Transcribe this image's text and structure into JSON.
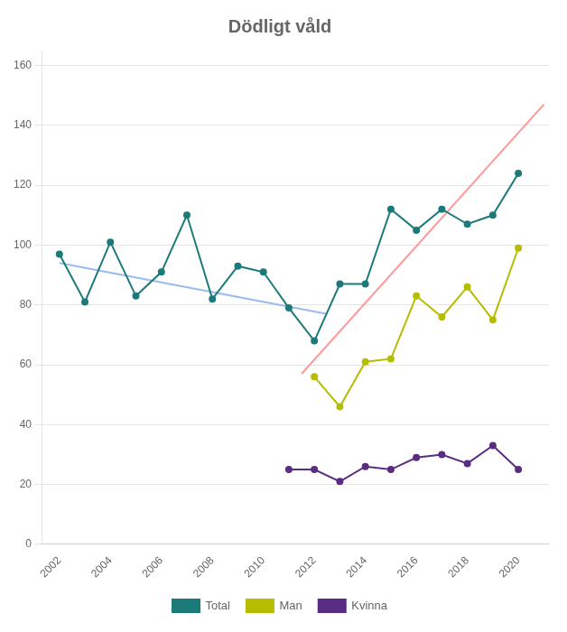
{
  "chart_data": {
    "type": "line",
    "title": "Dödligt våld",
    "series": [
      {
        "color": "#99bbee",
        "x": [
          2002.0,
          2012.5
        ],
        "values": [
          94.0,
          77.0
        ],
        "marker": "none"
      },
      {
        "color": "#ff9999",
        "x": [
          2011.5,
          2021.0
        ],
        "values": [
          57.0,
          147.0
        ],
        "marker": "none"
      },
      {
        "name": "Total",
        "color": "#1d7a7a",
        "marker": "circle",
        "x": [
          2002,
          2003,
          2004,
          2005,
          2006,
          2007,
          2008,
          2009,
          2010,
          2011,
          2012,
          2013,
          2014,
          2015,
          2016,
          2017,
          2018,
          2019,
          2020
        ],
        "values": [
          97,
          81,
          101,
          83,
          91,
          110,
          82,
          93,
          91,
          79,
          68,
          87,
          87,
          112,
          105,
          112,
          107,
          110,
          124
        ]
      },
      {
        "name": "Man",
        "color": "#b5bd00",
        "marker": "circle",
        "x": [
          2012,
          2013,
          2014,
          2015,
          2016,
          2017,
          2018,
          2019,
          2020
        ],
        "values": [
          56,
          46,
          61,
          62,
          83,
          76,
          86,
          75,
          99
        ]
      },
      {
        "name": "Kvinna",
        "color": "#5b2d82",
        "marker": "circle",
        "x": [
          2011,
          2012,
          2013,
          2014,
          2015,
          2016,
          2017,
          2018,
          2019,
          2020
        ],
        "values": [
          25,
          25,
          21,
          26,
          25,
          29,
          30,
          27,
          33,
          25
        ]
      }
    ],
    "xlim": [
      2001.3,
      2021.2
    ],
    "xticks": [
      2002,
      2004,
      2006,
      2008,
      2010,
      2012,
      2014,
      2016,
      2018,
      2020
    ],
    "ylim": [
      0,
      165
    ],
    "yticks": [
      0,
      20,
      40,
      60,
      80,
      100,
      120,
      140,
      160
    ],
    "grid": "y",
    "legend": "bottom"
  }
}
